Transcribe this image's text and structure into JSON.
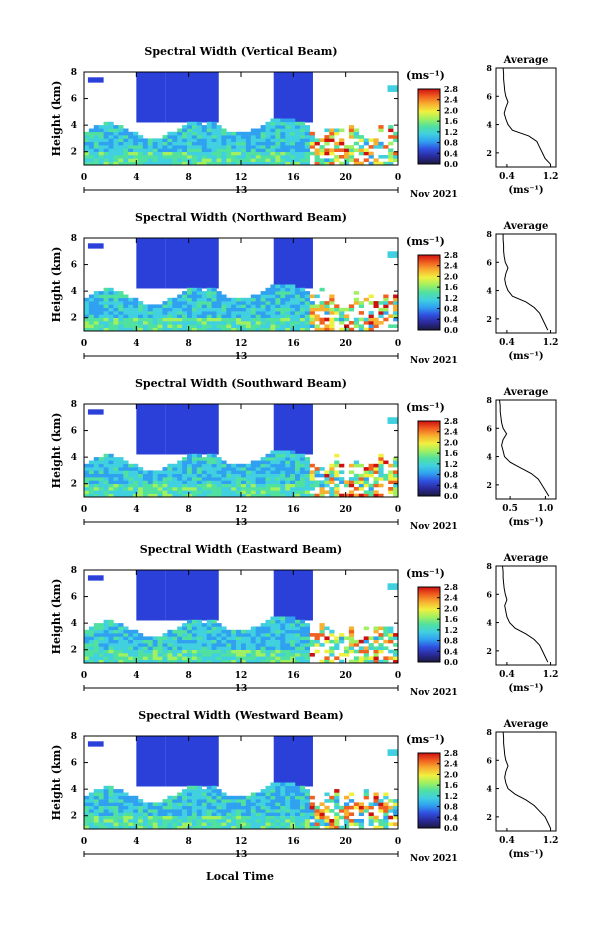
{
  "colors": {
    "no_data": "#ffffff",
    "colorbar_stops": [
      "#1a1a40",
      "#2a2a9a",
      "#3050e0",
      "#30a0f0",
      "#40d0e0",
      "#50e0a0",
      "#a0f060",
      "#f0f040",
      "#f8b030",
      "#f06020",
      "#d01010"
    ],
    "low_width_block": "#2a40d8"
  },
  "shared": {
    "x_ticks": [
      "0",
      "4",
      "8",
      "12",
      "16",
      "20",
      "0"
    ],
    "date_mid": "13",
    "date_suffix": "Nov 2021",
    "y_label": "Height (km)",
    "y_ticks": [
      "2",
      "4",
      "6",
      "8"
    ],
    "unit_label": "(ms⁻¹)",
    "avg_title": "Average",
    "avg_unit": "(ms⁻¹)",
    "x_axis_title": "Local Time"
  },
  "chart_data": [
    {
      "type": "heatmap",
      "title": "Spectral Width (Vertical Beam)",
      "x_range_hours": [
        0,
        24
      ],
      "y_range_km": [
        1,
        8
      ],
      "colorbar_ticks": [
        "2.8",
        "2.4",
        "2.0",
        "1.6",
        "1.2",
        "0.8",
        "0.4",
        "0.0"
      ],
      "colorbar_range": [
        0.0,
        2.8
      ],
      "profile": {
        "type": "line",
        "title": "Average",
        "x_ticks": [
          "0.4",
          "1.2"
        ],
        "xlim": [
          0.2,
          1.3
        ],
        "ylim": [
          1,
          8
        ],
        "height_km": [
          1.2,
          1.6,
          2.0,
          2.4,
          2.8,
          3.2,
          3.6,
          4.0,
          4.4,
          4.8,
          5.2,
          5.6,
          6.0,
          6.4,
          6.8,
          7.2,
          7.6,
          8.0
        ],
        "width_ms": [
          1.2,
          1.1,
          1.05,
          1.0,
          0.95,
          0.8,
          0.5,
          0.42,
          0.38,
          0.35,
          0.38,
          0.42,
          0.38,
          0.36,
          0.35,
          0.34,
          0.34,
          0.33
        ]
      }
    },
    {
      "type": "heatmap",
      "title": "Spectral Width (Northward Beam)",
      "x_range_hours": [
        0,
        24
      ],
      "y_range_km": [
        1,
        8
      ],
      "colorbar_ticks": [
        "2.8",
        "2.4",
        "2.0",
        "1.6",
        "1.2",
        "0.8",
        "0.4",
        "0.0"
      ],
      "colorbar_range": [
        0.0,
        2.8
      ],
      "profile": {
        "type": "line",
        "title": "Average",
        "x_ticks": [
          "0.4",
          "1.2"
        ],
        "xlim": [
          0.2,
          1.3
        ],
        "ylim": [
          1,
          8
        ],
        "height_km": [
          1.2,
          1.6,
          2.0,
          2.4,
          2.8,
          3.2,
          3.6,
          4.0,
          4.4,
          4.8,
          5.2,
          5.6,
          6.0,
          6.4,
          6.8,
          7.2,
          7.6,
          8.0
        ],
        "width_ms": [
          1.15,
          1.1,
          1.05,
          1.0,
          0.9,
          0.75,
          0.5,
          0.42,
          0.38,
          0.36,
          0.38,
          0.42,
          0.37,
          0.35,
          0.34,
          0.34,
          0.33,
          0.33
        ]
      }
    },
    {
      "type": "heatmap",
      "title": "Spectral Width (Southward Beam)",
      "x_range_hours": [
        0,
        24
      ],
      "y_range_km": [
        1,
        8
      ],
      "colorbar_ticks": [
        "2.8",
        "2.4",
        "2.0",
        "1.6",
        "1.2",
        "0.8",
        "0.4",
        "0.0"
      ],
      "colorbar_range": [
        0.0,
        2.8
      ],
      "profile": {
        "type": "line",
        "title": "Average",
        "x_ticks": [
          "0.5",
          "1.0"
        ],
        "xlim": [
          0.3,
          1.15
        ],
        "ylim": [
          1,
          8
        ],
        "height_km": [
          1.2,
          1.6,
          2.0,
          2.4,
          2.8,
          3.2,
          3.6,
          4.0,
          4.4,
          4.8,
          5.2,
          5.6,
          6.0,
          6.4,
          6.8,
          7.2,
          7.6,
          8.0
        ],
        "width_ms": [
          1.05,
          1.0,
          0.95,
          0.9,
          0.8,
          0.65,
          0.5,
          0.42,
          0.4,
          0.38,
          0.4,
          0.45,
          0.4,
          0.38,
          0.37,
          0.36,
          0.36,
          0.35
        ]
      }
    },
    {
      "type": "heatmap",
      "title": "Spectral Width (Eastward Beam)",
      "x_range_hours": [
        0,
        24
      ],
      "y_range_km": [
        1,
        8
      ],
      "colorbar_ticks": [
        "2.8",
        "2.4",
        "2.0",
        "1.6",
        "1.2",
        "0.8",
        "0.4",
        "0.0"
      ],
      "colorbar_range": [
        0.0,
        2.8
      ],
      "profile": {
        "type": "line",
        "title": "Average",
        "x_ticks": [
          "0.4",
          "1.2"
        ],
        "xlim": [
          0.2,
          1.3
        ],
        "ylim": [
          1,
          8
        ],
        "height_km": [
          1.2,
          1.6,
          2.0,
          2.4,
          2.8,
          3.2,
          3.6,
          4.0,
          4.4,
          4.8,
          5.2,
          5.6,
          6.0,
          6.4,
          6.8,
          7.2,
          7.6,
          8.0
        ],
        "width_ms": [
          1.15,
          1.1,
          1.05,
          1.0,
          0.9,
          0.75,
          0.55,
          0.45,
          0.4,
          0.38,
          0.36,
          0.4,
          0.37,
          0.35,
          0.34,
          0.33,
          0.33,
          0.32
        ]
      }
    },
    {
      "type": "heatmap",
      "title": "Spectral Width (Westward Beam)",
      "x_range_hours": [
        0,
        24
      ],
      "y_range_km": [
        1,
        8
      ],
      "colorbar_ticks": [
        "2.8",
        "2.4",
        "2.0",
        "1.6",
        "1.2",
        "0.8",
        "0.4",
        "0.0"
      ],
      "colorbar_range": [
        0.0,
        2.8
      ],
      "profile": {
        "type": "line",
        "title": "Average",
        "x_ticks": [
          "0.4",
          "1.2"
        ],
        "xlim": [
          0.2,
          1.3
        ],
        "ylim": [
          1,
          8
        ],
        "height_km": [
          1.2,
          1.6,
          2.0,
          2.4,
          2.8,
          3.2,
          3.6,
          4.0,
          4.4,
          4.8,
          5.2,
          5.6,
          6.0,
          6.4,
          6.8,
          7.2,
          7.6,
          8.0
        ],
        "width_ms": [
          1.2,
          1.15,
          1.1,
          1.0,
          0.9,
          0.75,
          0.55,
          0.42,
          0.38,
          0.36,
          0.38,
          0.42,
          0.38,
          0.36,
          0.35,
          0.34,
          0.34,
          0.33
        ]
      }
    }
  ]
}
